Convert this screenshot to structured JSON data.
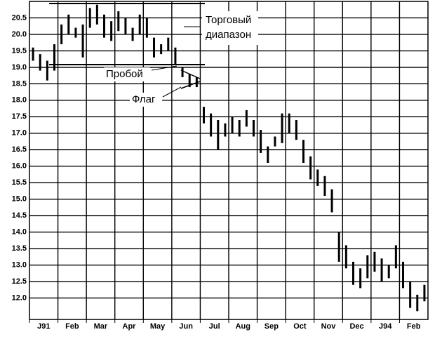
{
  "chart_data": {
    "type": "range-bar",
    "categories": [
      "J91",
      "Feb",
      "Mar",
      "Apr",
      "May",
      "Jun",
      "Jul",
      "Aug",
      "Sep",
      "Oct",
      "Nov",
      "Dec",
      "J94",
      "Feb"
    ],
    "high": [
      [
        19.6,
        19.4,
        19.2,
        19.7
      ],
      [
        20.3,
        20.6,
        20.2,
        20.3
      ],
      [
        20.8,
        20.9,
        20.6,
        20.4
      ],
      [
        20.7,
        20.5,
        20.2,
        20.6
      ],
      [
        20.5,
        19.9,
        19.7,
        19.9
      ],
      [
        19.6,
        19.0,
        18.8,
        18.7
      ],
      [
        17.8,
        17.6,
        17.4,
        17.3
      ],
      [
        17.5,
        17.4,
        17.7,
        17.4
      ],
      [
        17.1,
        16.6,
        16.9,
        17.6
      ],
      [
        17.6,
        17.4,
        16.8,
        16.3
      ],
      [
        15.9,
        15.7,
        15.3,
        14.0
      ],
      [
        13.6,
        13.1,
        12.9,
        13.3
      ],
      [
        13.4,
        13.2,
        13.0,
        13.6
      ],
      [
        13.1,
        12.5,
        12.1,
        12.4
      ]
    ],
    "low": [
      [
        19.2,
        18.9,
        18.6,
        18.9
      ],
      [
        19.7,
        20.0,
        19.9,
        19.3
      ],
      [
        20.2,
        20.3,
        19.9,
        19.8
      ],
      [
        20.1,
        20.0,
        19.8,
        20.0
      ],
      [
        19.9,
        19.3,
        19.4,
        19.5
      ],
      [
        19.1,
        18.7,
        18.4,
        18.4
      ],
      [
        17.3,
        16.9,
        16.5,
        16.9
      ],
      [
        17.0,
        16.9,
        17.2,
        16.9
      ],
      [
        16.4,
        16.1,
        16.6,
        16.7
      ],
      [
        17.0,
        16.8,
        16.1,
        15.6
      ],
      [
        15.4,
        15.1,
        14.6,
        13.1
      ],
      [
        12.9,
        12.4,
        12.3,
        12.6
      ],
      [
        12.8,
        12.5,
        12.6,
        12.9
      ],
      [
        12.3,
        11.7,
        11.6,
        11.9
      ]
    ],
    "color": "#000000",
    "ylim": [
      11.35,
      21.0
    ],
    "yticks": [
      {
        "value": 12,
        "label": "12.0"
      },
      12.5,
      {
        "value": 13,
        "label": "13.0"
      },
      13.5,
      {
        "value": 14,
        "label": "14.0"
      },
      14.5,
      {
        "value": 15,
        "label": "15.0"
      },
      15.5,
      {
        "value": 16,
        "label": "16.0"
      },
      16.5,
      {
        "value": 17,
        "label": "17.0"
      },
      17.5,
      {
        "value": 18,
        "label": "18.0"
      },
      18.5,
      {
        "value": 19,
        "label": "19.0"
      },
      19.5,
      {
        "value": 20,
        "label": "20.0"
      },
      20.5
    ],
    "grid": true,
    "annotations": [
      "Торговый",
      "диапазон",
      "Пробой",
      "Флаг"
    ]
  }
}
